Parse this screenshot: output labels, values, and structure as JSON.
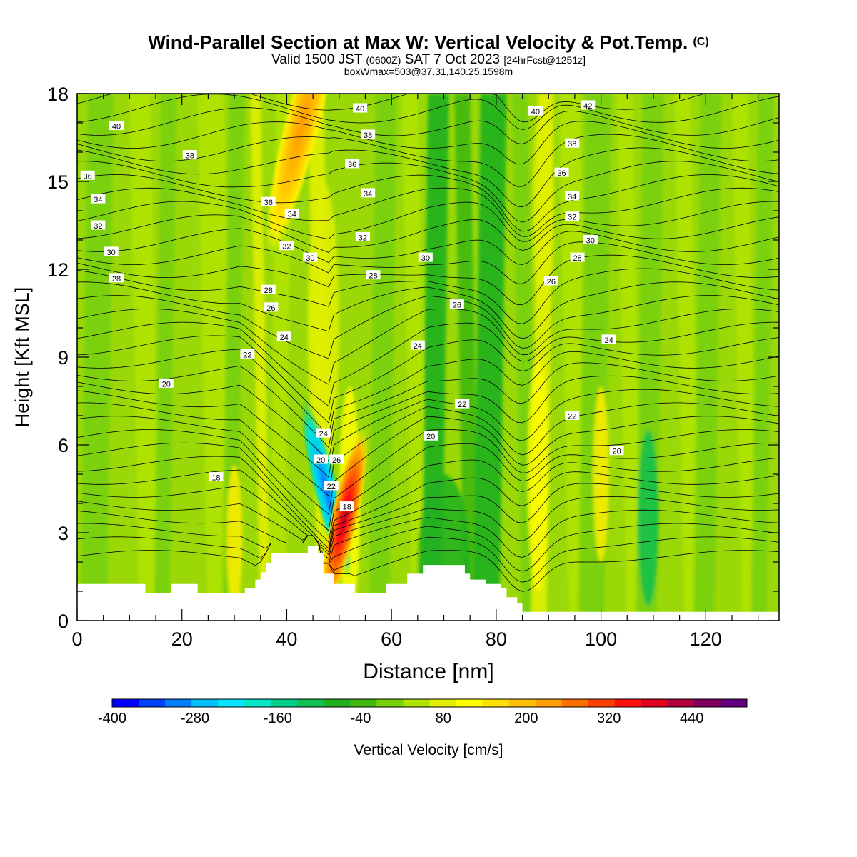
{
  "header": {
    "title": "Wind-Parallel Section at Max W: Vertical Velocity & Pot.Temp.",
    "copyright": "(C)",
    "valid_prefix": "Valid 1500 JST",
    "valid_zulu": "(0600Z)",
    "valid_date": "SAT 7 Oct 2023",
    "forecast": "[24hrFcst@1251z]",
    "box_info": "boxWmax=503@37.31,140.25,1598m"
  },
  "chart_data": {
    "type": "heatmap",
    "xlabel": "Distance [nm]",
    "ylabel": "Height [Kft MSL]",
    "xlim": [
      0,
      134
    ],
    "ylim": [
      0,
      18
    ],
    "xticks": [
      0,
      20,
      40,
      60,
      80,
      100,
      120
    ],
    "yticks": [
      0,
      3,
      6,
      9,
      12,
      15,
      18
    ],
    "colorbar": {
      "label": "Vertical Velocity [cm/s]",
      "range": [
        -400,
        520
      ],
      "step": 40,
      "tick_labels": [
        -400,
        -280,
        -160,
        -40,
        80,
        200,
        320,
        440
      ],
      "colors": [
        "#0000ff",
        "#0040ff",
        "#0080ff",
        "#00bfff",
        "#00e5ff",
        "#00e5c8",
        "#00d08a",
        "#10c050",
        "#20b020",
        "#40b810",
        "#78d008",
        "#b0e400",
        "#e0f000",
        "#ffff00",
        "#ffe000",
        "#ffc000",
        "#ffa000",
        "#ff7000",
        "#ff4000",
        "#ff1010",
        "#e00020",
        "#b00040",
        "#800060",
        "#600080"
      ]
    },
    "w_features": [
      {
        "name": "downdraft",
        "x_center": 47.5,
        "height_kft": 4.5,
        "w_cms": -300
      },
      {
        "name": "updraft",
        "x_center": 51,
        "height_kft": 3.5,
        "w_cms": 500
      },
      {
        "name": "updraft-aloft",
        "x_center": 43,
        "height_kft": 17,
        "w_cms": 160
      }
    ],
    "terrain_kft": {
      "x": [
        0,
        13,
        13,
        18,
        18,
        23,
        23,
        32,
        32,
        34,
        34,
        35,
        35,
        36,
        36,
        37,
        37,
        44,
        44,
        46,
        46,
        47,
        47,
        49,
        49,
        53,
        53,
        59,
        59,
        63,
        63,
        66,
        66,
        74,
        74,
        75,
        75,
        78,
        78,
        81,
        81,
        82,
        82,
        84,
        84,
        85,
        85,
        134
      ],
      "y": [
        1.25,
        1.25,
        0.95,
        0.95,
        1.25,
        1.25,
        0.95,
        0.95,
        1.1,
        1.1,
        1.4,
        1.4,
        1.65,
        1.65,
        1.95,
        1.95,
        2.3,
        2.3,
        2.55,
        2.55,
        2.3,
        2.3,
        1.6,
        1.6,
        1.25,
        1.25,
        0.95,
        0.95,
        1.25,
        1.25,
        1.6,
        1.6,
        1.9,
        1.9,
        1.6,
        1.6,
        1.4,
        1.4,
        1.25,
        1.25,
        1.1,
        1.1,
        0.8,
        0.8,
        0.6,
        0.6,
        0.3,
        0.3
      ]
    },
    "theta_labels": [
      {
        "value": "40",
        "x": 7.5,
        "y": 16.9
      },
      {
        "value": "38",
        "x": 21.5,
        "y": 15.9
      },
      {
        "value": "36",
        "x": 2,
        "y": 15.2
      },
      {
        "value": "34",
        "x": 4,
        "y": 14.4
      },
      {
        "value": "32",
        "x": 4,
        "y": 13.5
      },
      {
        "value": "30",
        "x": 6.5,
        "y": 12.6
      },
      {
        "value": "28",
        "x": 7.5,
        "y": 11.7
      },
      {
        "value": "36",
        "x": 36.5,
        "y": 14.3
      },
      {
        "value": "34",
        "x": 41,
        "y": 13.9
      },
      {
        "value": "32",
        "x": 40,
        "y": 12.8
      },
      {
        "value": "30",
        "x": 44.5,
        "y": 12.4
      },
      {
        "value": "28",
        "x": 36.5,
        "y": 11.3
      },
      {
        "value": "26",
        "x": 37,
        "y": 10.7
      },
      {
        "value": "24",
        "x": 39.5,
        "y": 9.7
      },
      {
        "value": "22",
        "x": 32.5,
        "y": 9.1
      },
      {
        "value": "20",
        "x": 17,
        "y": 8.1
      },
      {
        "value": "18",
        "x": 26.5,
        "y": 4.9
      },
      {
        "value": "40",
        "x": 54,
        "y": 17.5
      },
      {
        "value": "38",
        "x": 55.5,
        "y": 16.6
      },
      {
        "value": "36",
        "x": 52.5,
        "y": 15.6
      },
      {
        "value": "34",
        "x": 55.5,
        "y": 14.6
      },
      {
        "value": "32",
        "x": 54.5,
        "y": 13.1
      },
      {
        "value": "28",
        "x": 56.5,
        "y": 11.8
      },
      {
        "value": "30",
        "x": 66.5,
        "y": 12.4
      },
      {
        "value": "26",
        "x": 72.5,
        "y": 10.8
      },
      {
        "value": "24",
        "x": 65,
        "y": 9.4
      },
      {
        "value": "22",
        "x": 73.5,
        "y": 7.4
      },
      {
        "value": "20",
        "x": 67.5,
        "y": 6.3
      },
      {
        "value": "24",
        "x": 47,
        "y": 6.4
      },
      {
        "value": "20",
        "x": 46.5,
        "y": 5.5
      },
      {
        "value": "26",
        "x": 49.5,
        "y": 5.5
      },
      {
        "value": "22",
        "x": 48.5,
        "y": 4.6
      },
      {
        "value": "18",
        "x": 51.5,
        "y": 3.9
      },
      {
        "value": "40",
        "x": 87.5,
        "y": 17.4
      },
      {
        "value": "42",
        "x": 97.5,
        "y": 17.6
      },
      {
        "value": "38",
        "x": 94.5,
        "y": 16.3
      },
      {
        "value": "36",
        "x": 92.5,
        "y": 15.3
      },
      {
        "value": "34",
        "x": 94.5,
        "y": 14.5
      },
      {
        "value": "32",
        "x": 94.5,
        "y": 13.8
      },
      {
        "value": "30",
        "x": 98,
        "y": 13.0
      },
      {
        "value": "28",
        "x": 95.5,
        "y": 12.4
      },
      {
        "value": "26",
        "x": 90.5,
        "y": 11.6
      },
      {
        "value": "24",
        "x": 101.5,
        "y": 9.6
      },
      {
        "value": "22",
        "x": 94.5,
        "y": 7.0
      },
      {
        "value": "20",
        "x": 103,
        "y": 5.8
      }
    ],
    "grid": false
  }
}
